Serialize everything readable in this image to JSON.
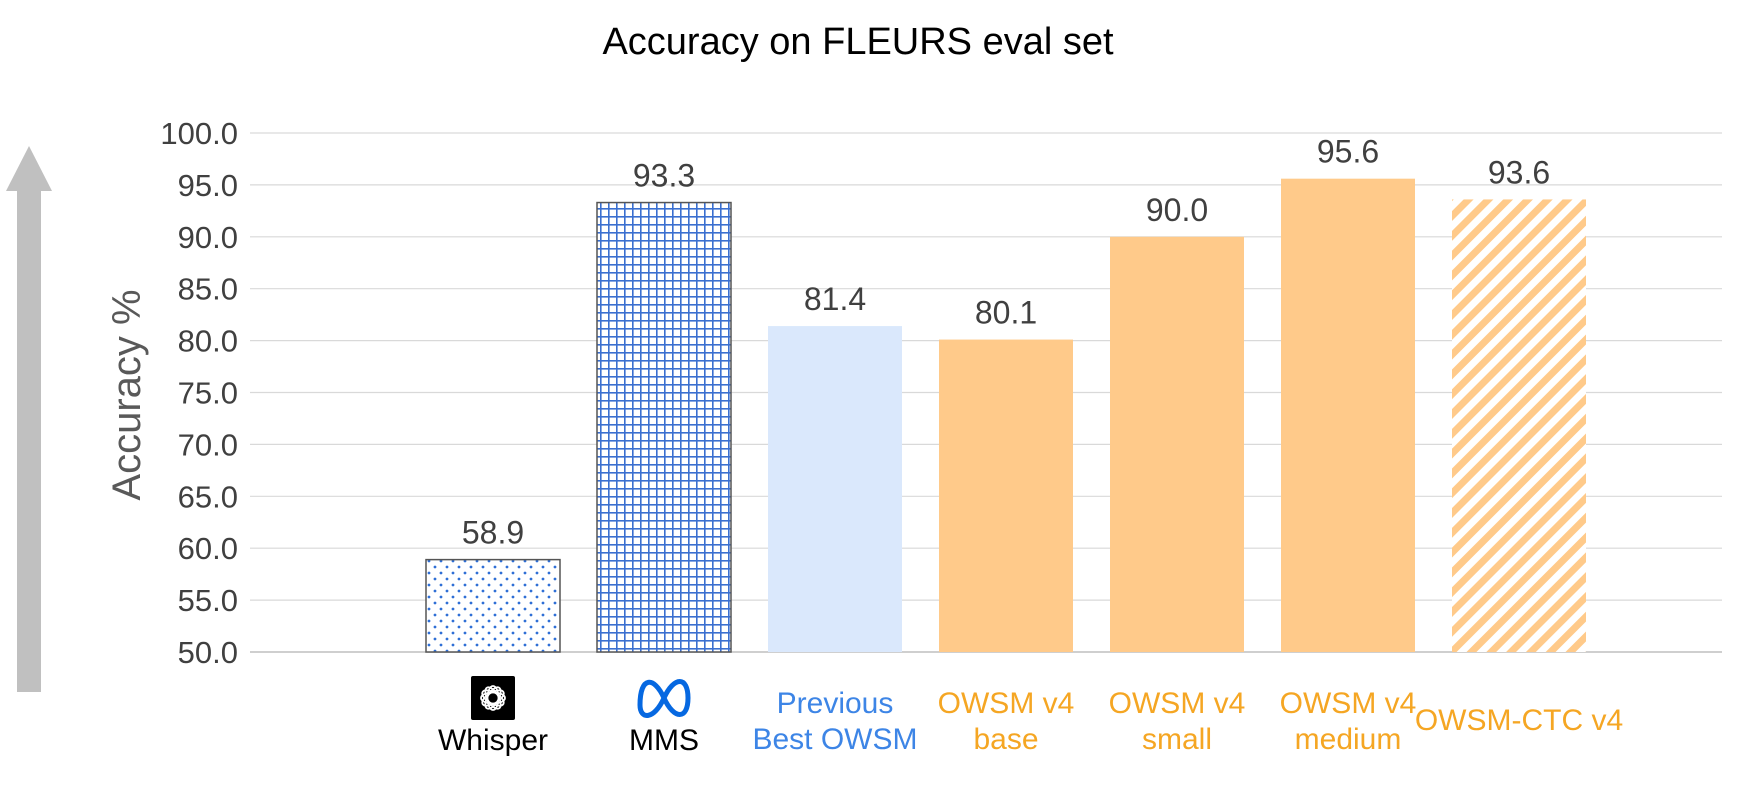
{
  "chart_data": {
    "type": "bar",
    "title": "Accuracy on FLEURS eval set",
    "xlabel": "",
    "ylabel": "Accuracy %",
    "ylim": [
      50.0,
      100.0
    ],
    "yticks": [
      "50.0",
      "55.0",
      "60.0",
      "65.0",
      "70.0",
      "75.0",
      "80.0",
      "85.0",
      "90.0",
      "95.0",
      "100.0"
    ],
    "grid": true,
    "legend": "none",
    "categories": [
      "Whisper",
      "MMS",
      "Previous Best OWSM",
      "OWSM v4 base",
      "OWSM v4 small",
      "OWSM v4 medium",
      "OWSM-CTC v4"
    ],
    "category_lines": [
      [
        "Whisper"
      ],
      [
        "MMS"
      ],
      [
        "Previous",
        "Best OWSM"
      ],
      [
        "OWSM v4",
        "base"
      ],
      [
        "OWSM v4",
        "small"
      ],
      [
        "OWSM v4",
        "medium"
      ],
      [
        "OWSM-CTC v4"
      ]
    ],
    "values": [
      58.9,
      93.3,
      81.4,
      80.1,
      90.0,
      95.6,
      93.6
    ],
    "value_labels": [
      "58.9",
      "93.3",
      "81.4",
      "80.1",
      "90.0",
      "95.6",
      "93.6"
    ],
    "bar_styles": [
      "dots",
      "grid",
      "solid",
      "solid",
      "solid",
      "solid",
      "stripes"
    ],
    "bar_colors": [
      "#2f6fd6",
      "#2f6fd6",
      "#dae8fc",
      "#ffca8a",
      "#ffca8a",
      "#ffca8a",
      "#ffca8a"
    ],
    "label_colors": [
      "#000000",
      "#000000",
      "#3d85e6",
      "#f5a623",
      "#f5a623",
      "#f5a623",
      "#f5a623"
    ],
    "logos": [
      "openai-logo",
      "meta-logo",
      "",
      "",
      "",
      "",
      ""
    ],
    "arrow_color": "#c0c0c0"
  }
}
